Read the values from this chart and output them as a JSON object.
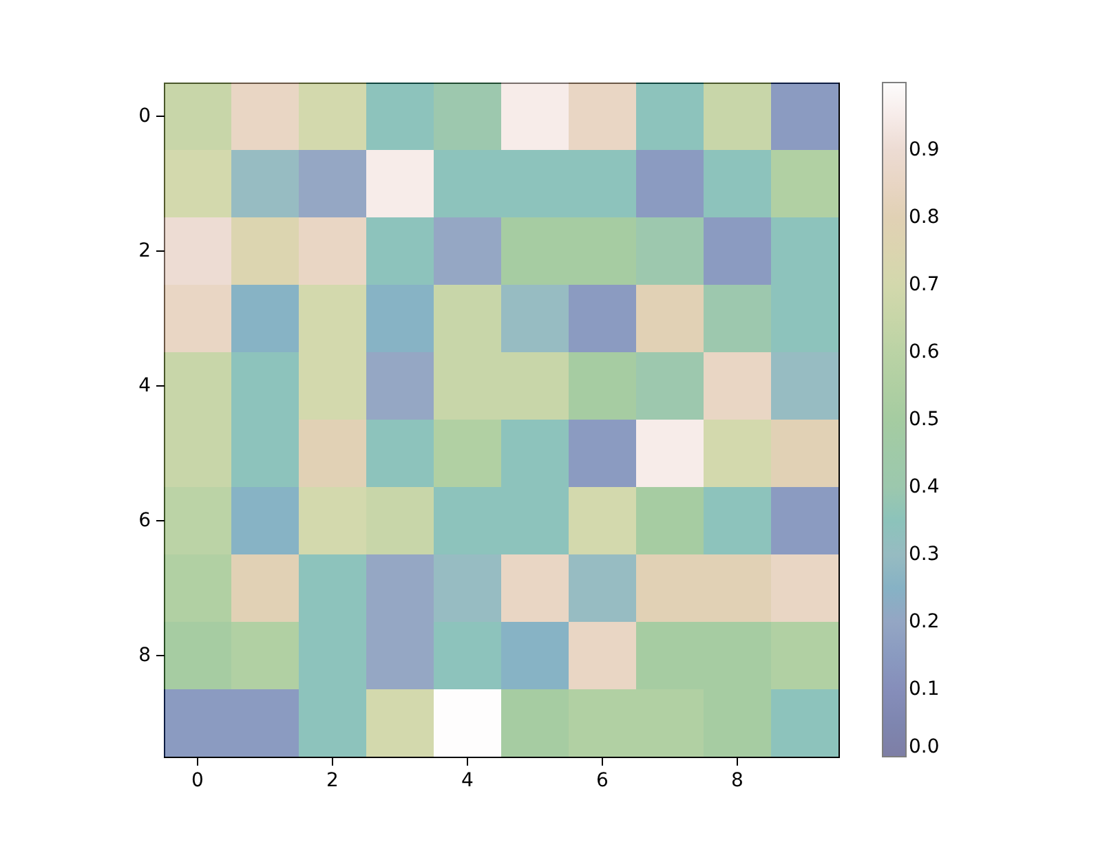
{
  "chart_data": {
    "type": "heatmap",
    "categories": [
      "0",
      null,
      "2",
      null,
      "4",
      null,
      "6",
      null,
      "8",
      null
    ],
    "y_categories": [
      "0",
      null,
      "2",
      null,
      "4",
      null,
      "6",
      null,
      "8",
      null
    ],
    "cells": [
      [
        0.65,
        0.85,
        0.7,
        0.35,
        0.4,
        0.95,
        0.85,
        0.35,
        0.65,
        0.15
      ],
      [
        0.7,
        0.3,
        0.2,
        0.95,
        0.35,
        0.35,
        0.35,
        0.15,
        0.35,
        0.55
      ],
      [
        0.9,
        0.75,
        0.85,
        0.35,
        0.2,
        0.5,
        0.5,
        0.4,
        0.15,
        0.35
      ],
      [
        0.85,
        0.25,
        0.7,
        0.25,
        0.65,
        0.3,
        0.15,
        0.8,
        0.4,
        0.35
      ],
      [
        0.65,
        0.35,
        0.7,
        0.2,
        0.65,
        0.65,
        0.5,
        0.4,
        0.85,
        0.3
      ],
      [
        0.65,
        0.35,
        0.8,
        0.35,
        0.55,
        0.35,
        0.15,
        0.95,
        0.7,
        0.8
      ],
      [
        0.6,
        0.25,
        0.7,
        0.65,
        0.35,
        0.35,
        0.7,
        0.5,
        0.35,
        0.15
      ],
      [
        0.55,
        0.8,
        0.35,
        0.2,
        0.3,
        0.85,
        0.3,
        0.8,
        0.8,
        0.85
      ],
      [
        0.5,
        0.55,
        0.35,
        0.2,
        0.35,
        0.25,
        0.85,
        0.5,
        0.5,
        0.55
      ],
      [
        0.15,
        0.15,
        0.35,
        0.7,
        1.0,
        0.5,
        0.55,
        0.55,
        0.5,
        0.35
      ]
    ],
    "clim": [
      0,
      1
    ],
    "cticks": [
      {
        "value": 0,
        "label": "0.0"
      },
      {
        "value": 0.1,
        "label": "0.1"
      },
      {
        "value": 0.2,
        "label": "0.2"
      },
      {
        "value": 0.3,
        "label": "0.3"
      },
      {
        "value": 0.4,
        "label": "0.4"
      },
      {
        "value": 0.5,
        "label": "0.5"
      },
      {
        "value": 0.6,
        "label": "0.6"
      },
      {
        "value": 0.7,
        "label": "0.7"
      },
      {
        "value": 0.8,
        "label": "0.8"
      },
      {
        "value": 0.9,
        "label": "0.9"
      }
    ]
  }
}
